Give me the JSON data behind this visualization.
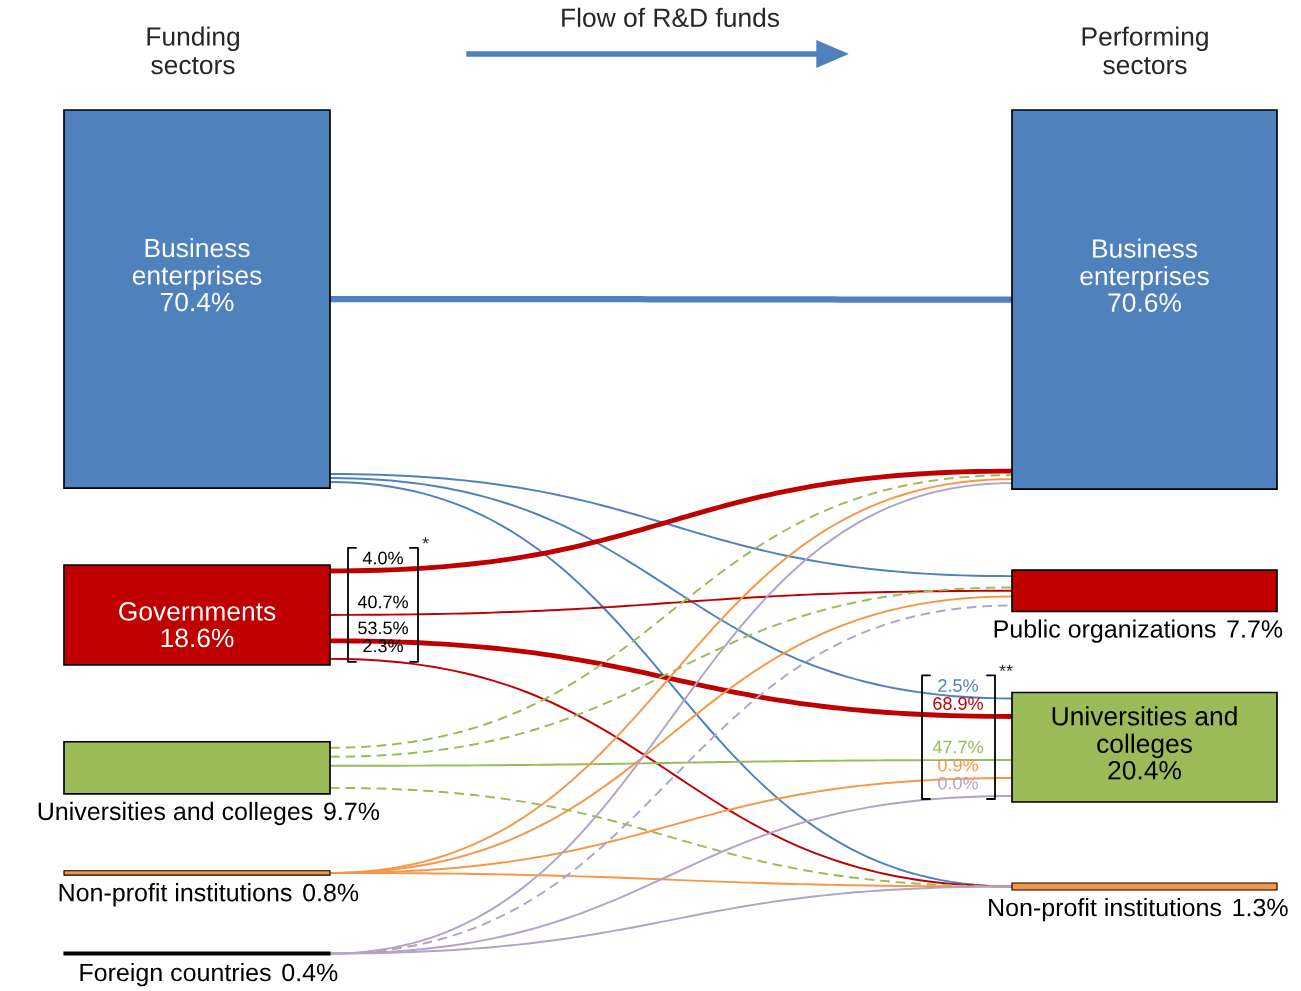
{
  "chart_data": {
    "type": "other",
    "title": "Flow of R&D funds",
    "annotations": [
      "*",
      "**",
      {
        "text": "4.0%",
        "x": "Governments"
      },
      {
        "text": "40.7%",
        "x": "Governments"
      },
      {
        "text": "53.5%",
        "x": "Governments"
      },
      {
        "text": "2.3%",
        "x": "Governments"
      },
      {
        "text": "2.5%",
        "x": "Universities and colleges"
      },
      {
        "text": "68.9%",
        "x": "Universities and colleges"
      },
      {
        "text": "47.7%",
        "x": "Universities and colleges"
      },
      {
        "text": "0.9%",
        "x": "Universities and colleges"
      },
      {
        "text": "0.0%",
        "x": "Universities and colleges"
      }
    ],
    "categories": [
      "Business enterprises",
      "Governments",
      "Universities and colleges",
      "Non-profit institutions",
      "Foreign countries",
      "Business enterprises",
      "Public organizations",
      "Universities and colleges",
      "Non-profit institutions"
    ],
    "series": [
      {
        "name": "Funding sectors",
        "values": [
          70.4,
          18.6,
          9.7,
          0.8,
          0.4,
          null,
          null,
          null,
          null
        ],
        "value_labels": [
          "70.4%",
          "18.6%",
          "9.7%",
          "0.8%",
          "0.4%",
          null,
          null,
          null,
          null
        ],
        "colors": [
          "#4f81bd",
          "#c00000",
          "#9bbb59",
          "#f79646",
          "#000000",
          null,
          null,
          null,
          null
        ]
      },
      {
        "name": "Performing sectors",
        "values": [
          null,
          null,
          null,
          null,
          null,
          70.6,
          7.7,
          20.4,
          1.3
        ],
        "value_labels": [
          null,
          null,
          null,
          null,
          null,
          "70.6%",
          "7.7%",
          "20.4%",
          "1.3%"
        ],
        "colors": [
          null,
          null,
          null,
          null,
          null,
          "#4f81bd",
          "#c00000",
          "#9bbb59",
          "#f79646"
        ]
      },
      {
        "type": "line",
        "x": [
          "Business enterprises",
          "Business enterprises"
        ],
        "values": [
          null,
          null
        ],
        "color": "#4f81bd",
        "line_style": "solid"
      },
      {
        "type": "line",
        "x": [
          "Business enterprises",
          "Public organizations"
        ],
        "values": [
          null,
          null
        ],
        "color": "#4f81bd",
        "line_style": "solid"
      },
      {
        "type": "line",
        "x": [
          "Business enterprises",
          "Universities and colleges"
        ],
        "values": [
          null,
          null
        ],
        "color": "#4f81bd",
        "line_style": "solid"
      },
      {
        "type": "line",
        "x": [
          "Business enterprises",
          "Non-profit institutions"
        ],
        "values": [
          null,
          null
        ],
        "color": "#4f81bd",
        "line_style": "solid"
      },
      {
        "type": "line",
        "x": [
          "Governments",
          "Business enterprises"
        ],
        "values": [
          null,
          null
        ],
        "color": "#c00000",
        "line_style": "solid"
      },
      {
        "type": "line",
        "x": [
          "Governments",
          "Public organizations"
        ],
        "values": [
          null,
          null
        ],
        "color": "#c00000",
        "line_style": "solid"
      },
      {
        "type": "line",
        "x": [
          "Governments",
          "Universities and colleges"
        ],
        "values": [
          null,
          null
        ],
        "color": "#c00000",
        "line_style": "solid"
      },
      {
        "type": "line",
        "x": [
          "Governments",
          "Non-profit institutions"
        ],
        "values": [
          null,
          null
        ],
        "color": "#c00000",
        "line_style": "solid"
      },
      {
        "type": "line",
        "x": [
          "Universities and colleges",
          "Business enterprises"
        ],
        "values": [
          null,
          null
        ],
        "color": "#9bbb59",
        "line_style": "dashed"
      },
      {
        "type": "line",
        "x": [
          "Universities and colleges",
          "Public organizations"
        ],
        "values": [
          null,
          null
        ],
        "color": "#9bbb59",
        "line_style": "dashed"
      },
      {
        "type": "line",
        "x": [
          "Universities and colleges",
          "Universities and colleges"
        ],
        "values": [
          null,
          null
        ],
        "color": "#9bbb59",
        "line_style": "solid"
      },
      {
        "type": "line",
        "x": [
          "Universities and colleges",
          "Non-profit institutions"
        ],
        "values": [
          null,
          null
        ],
        "color": "#9bbb59",
        "line_style": "dashed"
      },
      {
        "type": "line",
        "x": [
          "Non-profit institutions",
          "Business enterprises"
        ],
        "values": [
          null,
          null
        ],
        "color": "#f79646",
        "line_style": "solid"
      },
      {
        "type": "line",
        "x": [
          "Non-profit institutions",
          "Public organizations"
        ],
        "values": [
          null,
          null
        ],
        "color": "#f79646",
        "line_style": "solid"
      },
      {
        "type": "line",
        "x": [
          "Non-profit institutions",
          "Universities and colleges"
        ],
        "values": [
          null,
          null
        ],
        "color": "#f79646",
        "line_style": "solid"
      },
      {
        "type": "line",
        "x": [
          "Non-profit institutions",
          "Non-profit institutions"
        ],
        "values": [
          null,
          null
        ],
        "color": "#f79646",
        "line_style": "solid"
      },
      {
        "type": "line",
        "x": [
          "Foreign countries",
          "Business enterprises"
        ],
        "values": [
          null,
          null
        ],
        "color": "#b3a2c7",
        "line_style": "solid"
      },
      {
        "type": "line",
        "x": [
          "Foreign countries",
          "Public organizations"
        ],
        "values": [
          null,
          null
        ],
        "color": "#b3a2c7",
        "line_style": "dashed"
      },
      {
        "type": "line",
        "x": [
          "Foreign countries",
          "Universities and colleges"
        ],
        "values": [
          null,
          null
        ],
        "color": "#b3a2c7",
        "line_style": "solid"
      },
      {
        "type": "line",
        "x": [
          "Foreign countries",
          "Non-profit institutions"
        ],
        "values": [
          null,
          null
        ],
        "color": "#b3a2c7",
        "line_style": "solid"
      }
    ]
  }
}
